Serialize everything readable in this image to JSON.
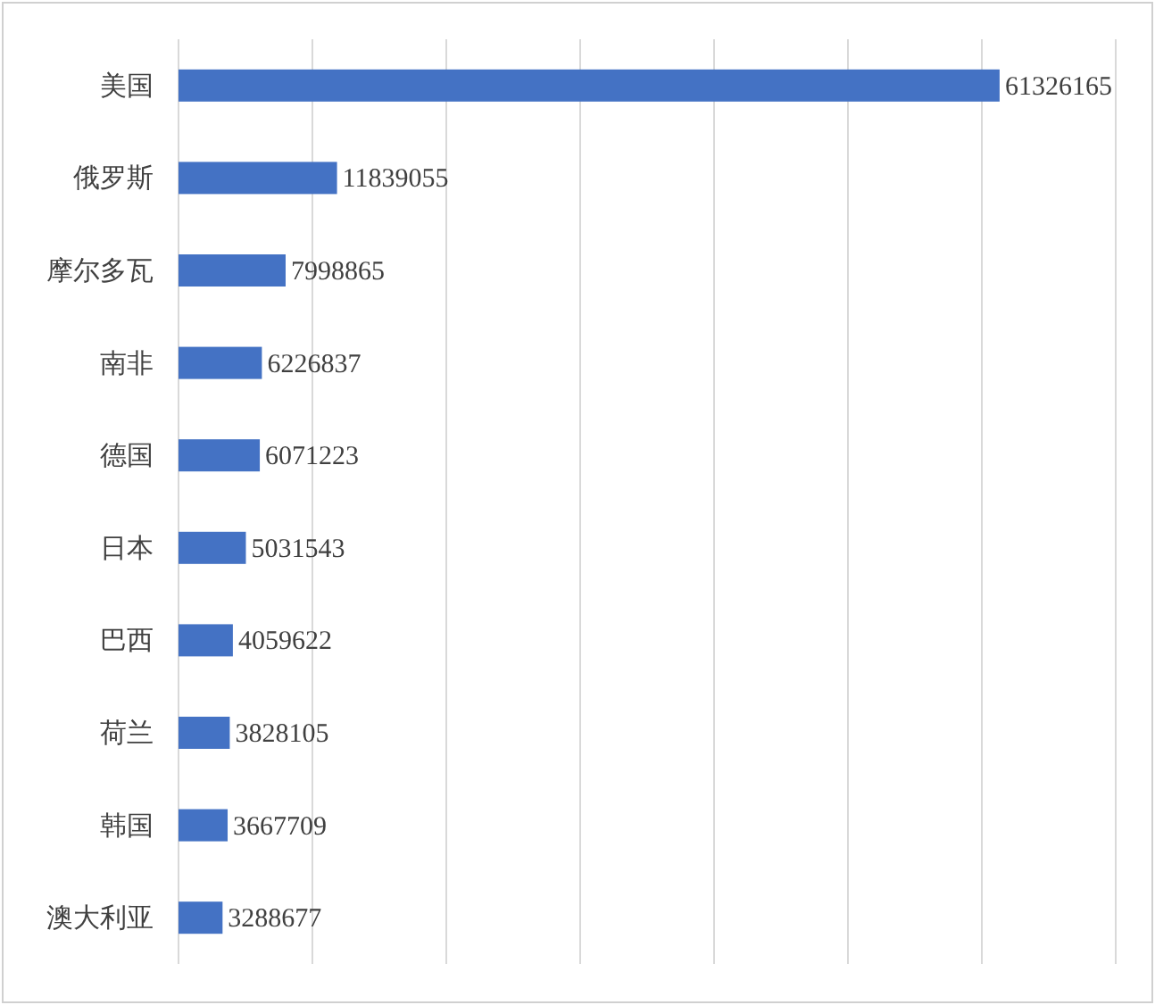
{
  "chart_data": {
    "type": "bar",
    "orientation": "horizontal",
    "categories": [
      "美国",
      "俄罗斯",
      "摩尔多瓦",
      "南非",
      "德国",
      "日本",
      "巴西",
      "荷兰",
      "韩国",
      "澳大利亚"
    ],
    "values": [
      61326165,
      11839055,
      7998865,
      6226837,
      6071223,
      5031543,
      4059622,
      3828105,
      3667709,
      3288677
    ],
    "color": "#4472c4",
    "data_labels": true,
    "grid": "x",
    "tick_labels": "y",
    "xlim": [
      0,
      70000000
    ],
    "xticks": [
      {
        "value": 0,
        "label": null
      },
      {
        "value": 10000000,
        "label": null
      },
      {
        "value": 20000000,
        "label": null
      },
      {
        "value": 30000000,
        "label": null
      },
      {
        "value": 40000000,
        "label": null
      },
      {
        "value": 50000000,
        "label": null
      },
      {
        "value": 60000000,
        "label": null
      },
      {
        "value": 70000000,
        "label": null
      }
    ]
  }
}
